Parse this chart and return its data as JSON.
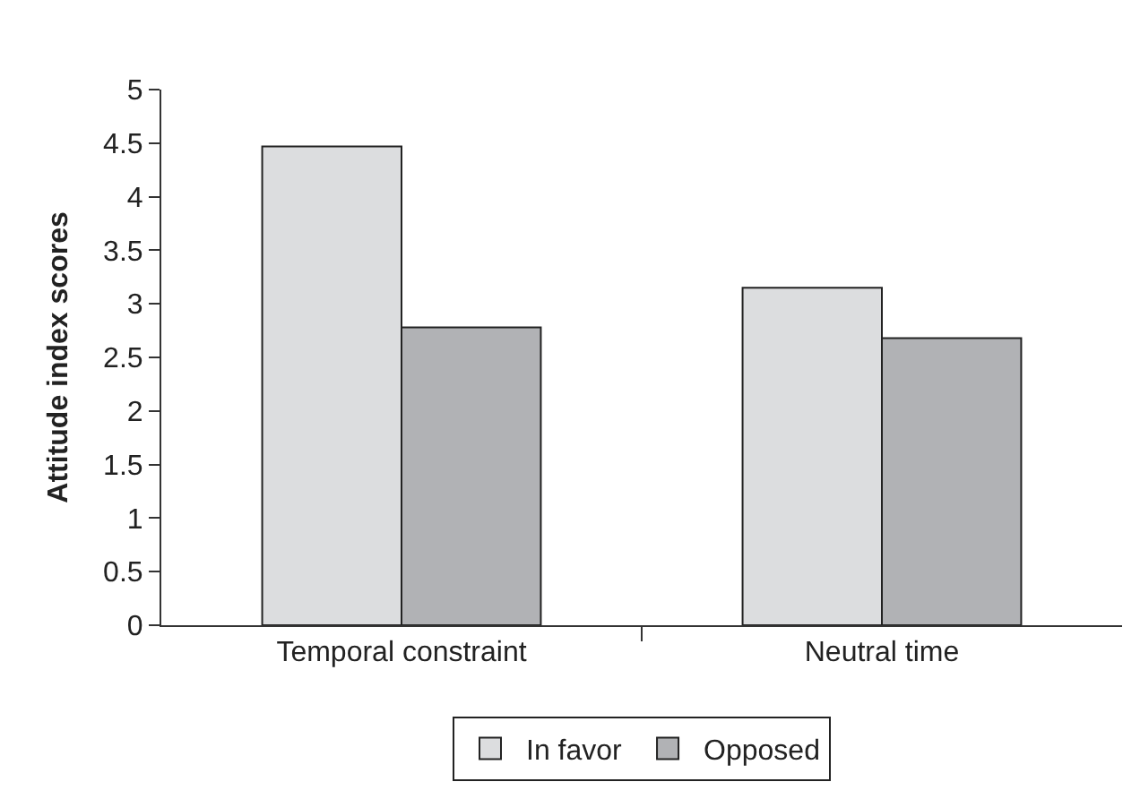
{
  "chart_data": {
    "type": "bar",
    "ylabel": "Attitude index scores",
    "categories": [
      "Temporal constraint",
      "Neutral time"
    ],
    "series": [
      {
        "name": "In favor",
        "color": "#dcdddf",
        "values": [
          4.47,
          3.15
        ]
      },
      {
        "name": "Opposed",
        "color": "#b1b2b5",
        "values": [
          2.78,
          2.68
        ]
      }
    ],
    "ylim": [
      0,
      5
    ],
    "yticks": [
      0,
      0.5,
      1,
      1.5,
      2,
      2.5,
      3,
      3.5,
      4,
      4.5,
      5
    ],
    "legend": "bottom"
  }
}
